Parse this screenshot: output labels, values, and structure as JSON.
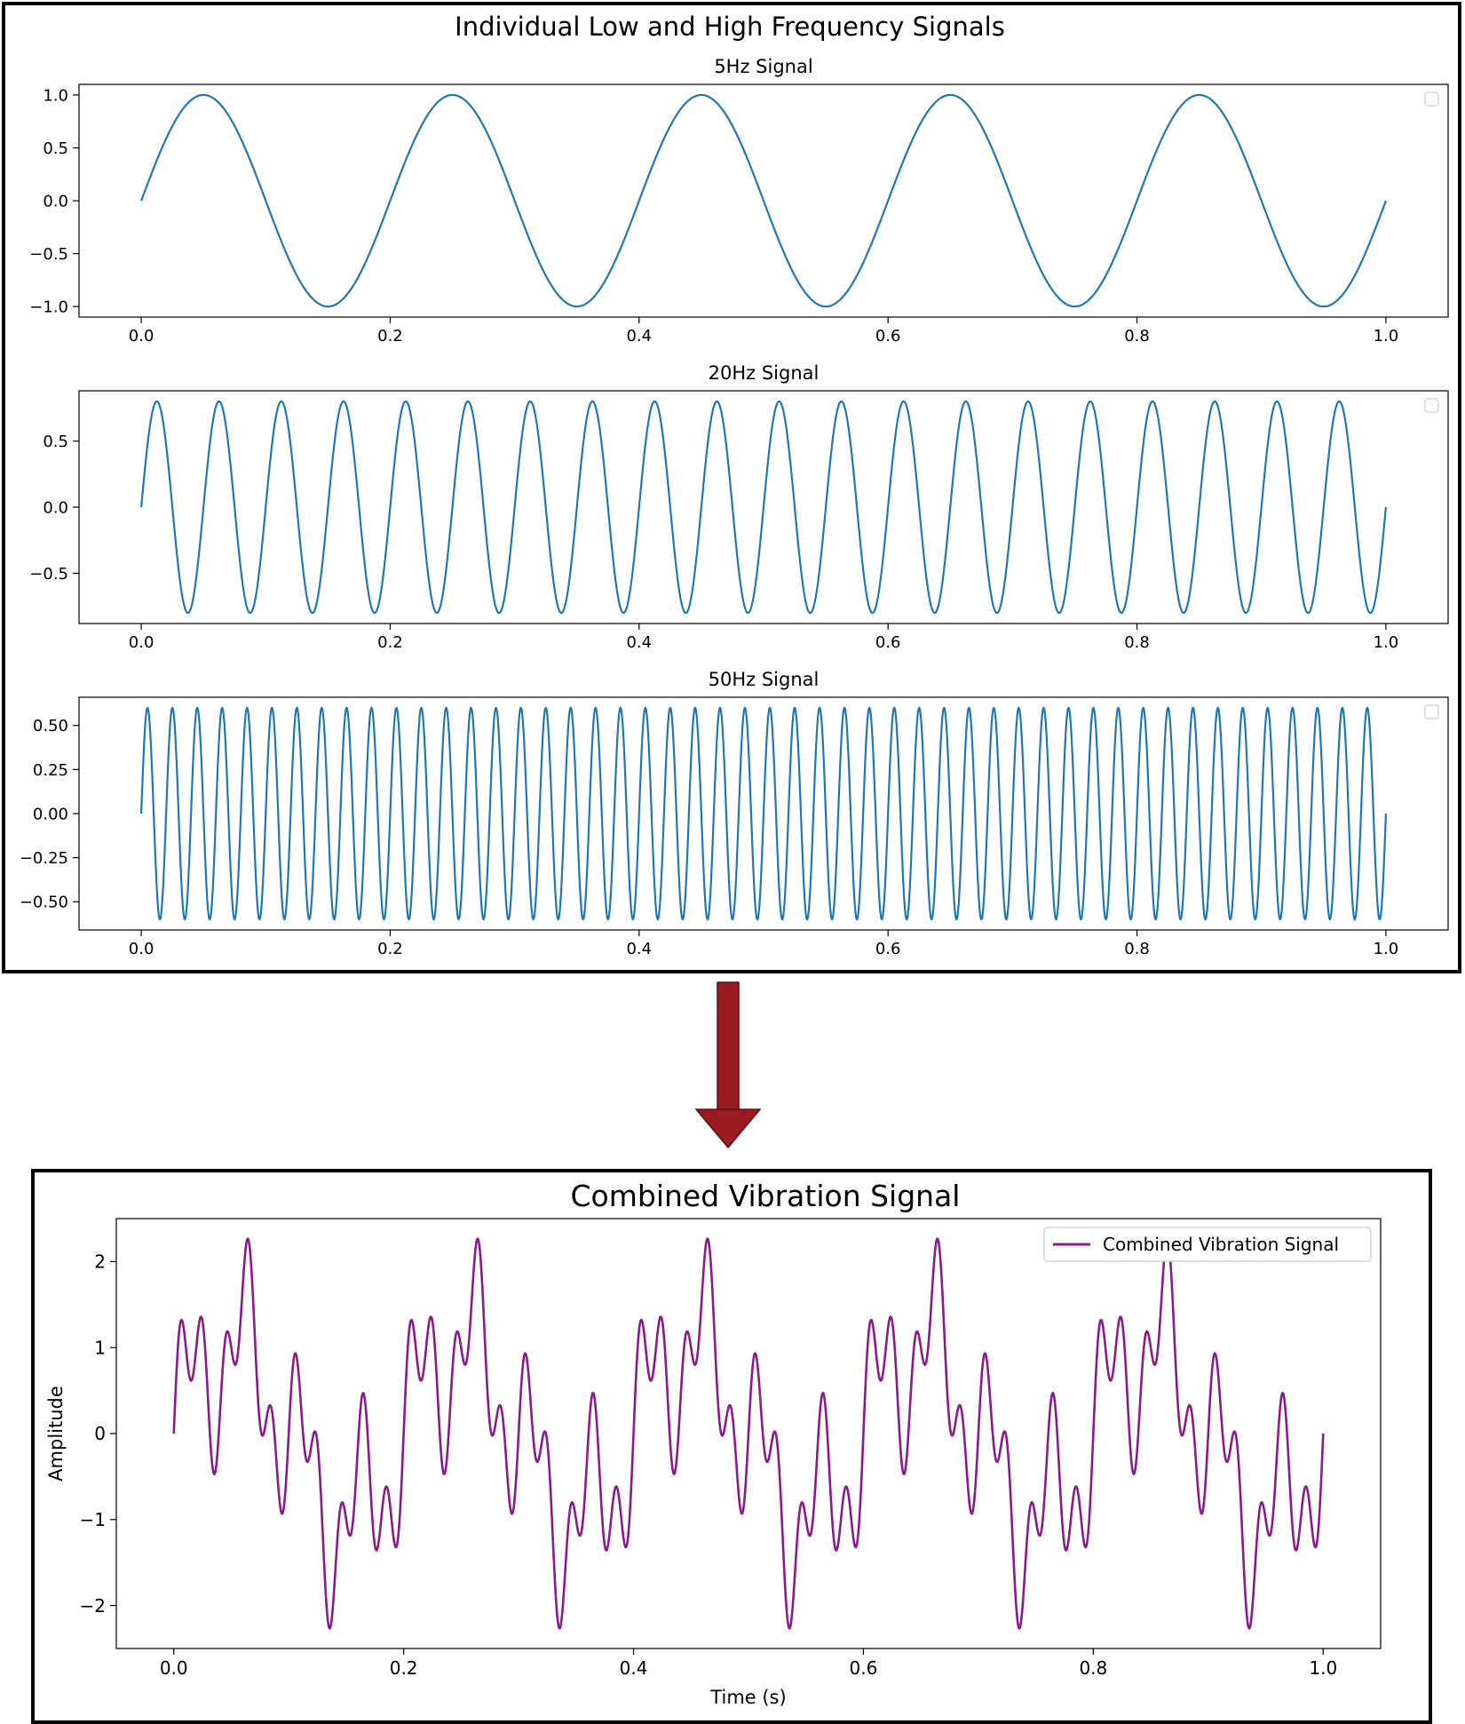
{
  "top_panel": {
    "suptitle": "Individual Low and High Frequency Signals"
  },
  "bottom_panel": {
    "title": "Combined Vibration Signal"
  },
  "colors": {
    "signal_line": "#1f77b4",
    "combined_line": "#8b1a8b",
    "arrow": "#9b1b23",
    "frame": "#000000"
  },
  "chart_data": [
    {
      "type": "line",
      "title": "5Hz Signal",
      "xlabel": "",
      "ylabel": "",
      "formula": {
        "components": [
          {
            "freq": 5,
            "amp": 1.0
          }
        ]
      },
      "x_range": [
        0,
        1
      ],
      "xlim": [
        -0.05,
        1.05
      ],
      "ylim": [
        -1.1,
        1.1
      ],
      "xticks": [
        0.0,
        0.2,
        0.4,
        0.6,
        0.8,
        1.0
      ],
      "xtick_labels": [
        "0.0",
        "0.2",
        "0.4",
        "0.6",
        "0.8",
        "1.0"
      ],
      "yticks": [
        1.0,
        0.5,
        0.0,
        -0.5,
        -1.0
      ],
      "ytick_labels": [
        "1.0",
        "0.5",
        "0.0",
        "−0.5",
        "−1.0"
      ],
      "legend": "top-right (empty)"
    },
    {
      "type": "line",
      "title": "20Hz Signal",
      "xlabel": "",
      "ylabel": "",
      "formula": {
        "components": [
          {
            "freq": 20,
            "amp": 0.8
          }
        ]
      },
      "x_range": [
        0,
        1
      ],
      "xlim": [
        -0.05,
        1.05
      ],
      "ylim": [
        -0.88,
        0.88
      ],
      "xticks": [
        0.0,
        0.2,
        0.4,
        0.6,
        0.8,
        1.0
      ],
      "xtick_labels": [
        "0.0",
        "0.2",
        "0.4",
        "0.6",
        "0.8",
        "1.0"
      ],
      "yticks": [
        0.5,
        0.0,
        -0.5
      ],
      "ytick_labels": [
        "0.5",
        "0.0",
        "−0.5"
      ],
      "legend": "top-right (empty)"
    },
    {
      "type": "line",
      "title": "50Hz Signal",
      "xlabel": "",
      "ylabel": "",
      "formula": {
        "components": [
          {
            "freq": 50,
            "amp": 0.6
          }
        ]
      },
      "x_range": [
        0,
        1
      ],
      "xlim": [
        -0.05,
        1.05
      ],
      "ylim": [
        -0.66,
        0.66
      ],
      "xticks": [
        0.0,
        0.2,
        0.4,
        0.6,
        0.8,
        1.0
      ],
      "xtick_labels": [
        "0.0",
        "0.2",
        "0.4",
        "0.6",
        "0.8",
        "1.0"
      ],
      "yticks": [
        0.5,
        0.25,
        0.0,
        -0.25,
        -0.5
      ],
      "ytick_labels": [
        "0.50",
        "0.25",
        "0.00",
        "−0.25",
        "−0.50"
      ],
      "legend": "top-right (empty)"
    },
    {
      "type": "line",
      "title": "Combined Vibration Signal",
      "xlabel": "Time (s)",
      "ylabel": "Amplitude",
      "formula": {
        "components": [
          {
            "freq": 5,
            "amp": 1.0
          },
          {
            "freq": 20,
            "amp": 0.8
          },
          {
            "freq": 50,
            "amp": 0.6
          }
        ]
      },
      "x_range": [
        0,
        1
      ],
      "xlim": [
        -0.05,
        1.05
      ],
      "ylim": [
        -2.5,
        2.5
      ],
      "xticks": [
        0.0,
        0.2,
        0.4,
        0.6,
        0.8,
        1.0
      ],
      "xtick_labels": [
        "0.0",
        "0.2",
        "0.4",
        "0.6",
        "0.8",
        "1.0"
      ],
      "yticks": [
        2,
        1,
        0,
        -1,
        -2
      ],
      "ytick_labels": [
        "2",
        "1",
        "0",
        "−1",
        "−2"
      ],
      "legend": "top-right",
      "legend_label": "Combined Vibration Signal"
    }
  ]
}
